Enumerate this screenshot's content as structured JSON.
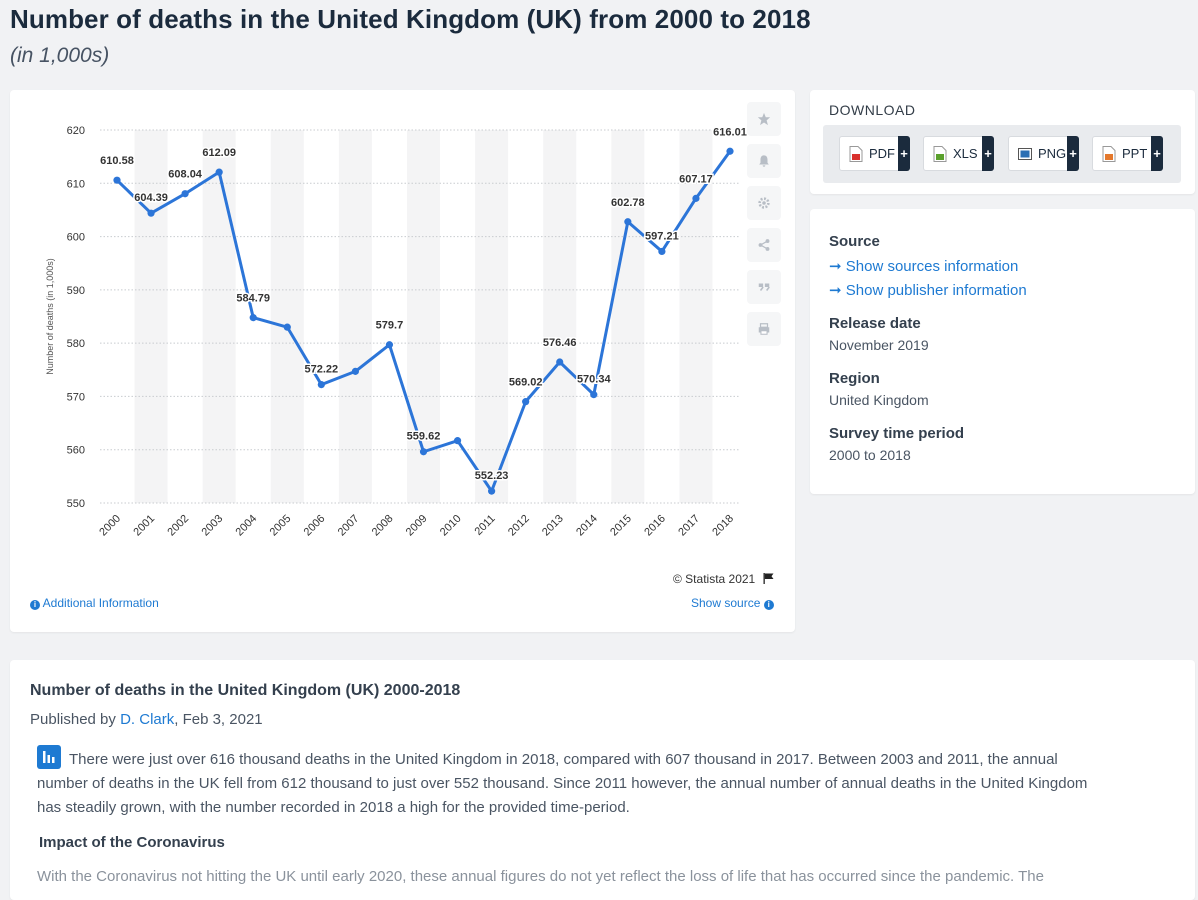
{
  "header": {
    "title": "Number of deaths in the United Kingdom (UK) from 2000 to 2018",
    "subtitle": "(in 1,000s)"
  },
  "chart_data": {
    "type": "line",
    "title": "",
    "xlabel": "",
    "ylabel": "Number of deaths (in 1,000s)",
    "categories": [
      "2000",
      "2001",
      "2002",
      "2003",
      "2004",
      "2005",
      "2006",
      "2007",
      "2008",
      "2009",
      "2010",
      "2011",
      "2012",
      "2013",
      "2014",
      "2015",
      "2016",
      "2017",
      "2018"
    ],
    "series": [
      {
        "values": [
          610.58,
          604.39,
          608.04,
          612.09,
          584.79,
          583.0,
          572.22,
          574.7,
          579.7,
          559.62,
          561.7,
          552.23,
          569.02,
          576.46,
          570.34,
          602.78,
          597.21,
          607.17,
          616.01
        ],
        "data_labels": [
          "610.58",
          "604.39",
          "608.04",
          "612.09",
          "584.79",
          "",
          "572.22",
          "",
          "579.7",
          "559.62",
          "",
          "552.23",
          "569.02",
          "576.46",
          "570.34",
          "602.78",
          "597.21",
          "607.17",
          "616.01"
        ],
        "color": "#2c75d8"
      }
    ],
    "ylim": [
      550,
      620
    ],
    "yticks": [
      "550",
      "560",
      "570",
      "580",
      "590",
      "600",
      "610",
      "620"
    ],
    "grid": true,
    "legend": "none"
  },
  "chart_footer": {
    "copyright": "© Statista 2021",
    "additional_info": "Additional Information",
    "show_source": "Show source"
  },
  "tools": [
    "star-icon",
    "bell-icon",
    "gear-icon",
    "share-icon",
    "quote-icon",
    "print-icon"
  ],
  "download": {
    "title": "DOWNLOAD",
    "buttons": [
      {
        "label": "PDF",
        "color": "#d9302c"
      },
      {
        "label": "XLS",
        "color": "#5aa02c"
      },
      {
        "label": "PNG",
        "color": "#2b6fb4"
      },
      {
        "label": "PPT",
        "color": "#e4782c"
      }
    ],
    "plus": "+"
  },
  "meta": {
    "source_label": "Source",
    "show_sources": "Show sources information",
    "show_publisher": "Show publisher information",
    "release_label": "Release date",
    "release_value": "November 2019",
    "region_label": "Region",
    "region_value": "United Kingdom",
    "survey_label": "Survey time period",
    "survey_value": "2000 to 2018"
  },
  "article": {
    "title": "Number of deaths in the United Kingdom (UK) 2000-2018",
    "published_by": "Published by ",
    "author": "D. Clark",
    "date": ", Feb 3, 2021",
    "body": "There were just over 616 thousand deaths in the United Kingdom in 2018, compared with 607 thousand in 2017. Between 2003 and 2011, the annual number of deaths in the UK fell from 612 thousand to just over 552 thousand. Since 2011 however, the annual number of annual deaths in the United Kingdom has steadily grown, with the number recorded in 2018 a high for the provided time-period.",
    "subheading": "Impact of the Coronavirus",
    "body2": "With the Coronavirus not hitting the UK until early 2020, these annual figures do not yet reflect the loss of life that has occurred since the pandemic. The"
  }
}
